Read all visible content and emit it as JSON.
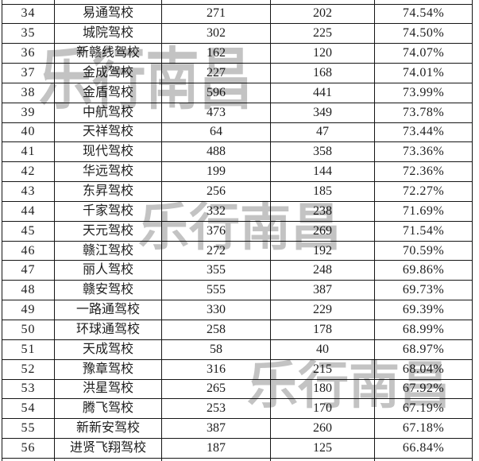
{
  "page": {
    "background": "#ffffff"
  },
  "colors": {
    "border": "#151515",
    "text": "#1d1d1d",
    "watermark": "#c3c3c3"
  },
  "watermark": {
    "text": "乐行南昌",
    "color": "#c3c3c3"
  },
  "table": {
    "rows": [
      [
        "34",
        "易通驾校",
        "271",
        "202",
        "74.54%"
      ],
      [
        "35",
        "城院驾校",
        "302",
        "225",
        "74.50%"
      ],
      [
        "36",
        "新赣线驾校",
        "162",
        "120",
        "74.07%"
      ],
      [
        "37",
        "金成驾校",
        "227",
        "168",
        "74.01%"
      ],
      [
        "38",
        "金盾驾校",
        "596",
        "441",
        "73.99%"
      ],
      [
        "39",
        "中航驾校",
        "473",
        "349",
        "73.78%"
      ],
      [
        "40",
        "天祥驾校",
        "64",
        "47",
        "73.44%"
      ],
      [
        "41",
        "现代驾校",
        "488",
        "358",
        "73.36%"
      ],
      [
        "42",
        "华远驾校",
        "199",
        "144",
        "72.36%"
      ],
      [
        "43",
        "东昇驾校",
        "256",
        "185",
        "72.27%"
      ],
      [
        "44",
        "千家驾校",
        "332",
        "238",
        "71.69%"
      ],
      [
        "45",
        "天元驾校",
        "376",
        "269",
        "71.54%"
      ],
      [
        "46",
        "赣江驾校",
        "272",
        "192",
        "70.59%"
      ],
      [
        "47",
        "丽人驾校",
        "355",
        "248",
        "69.86%"
      ],
      [
        "48",
        "赣安驾校",
        "555",
        "387",
        "69.73%"
      ],
      [
        "49",
        "一路通驾校",
        "330",
        "229",
        "69.39%"
      ],
      [
        "50",
        "环球通驾校",
        "258",
        "178",
        "68.99%"
      ],
      [
        "51",
        "天成驾校",
        "58",
        "40",
        "68.97%"
      ],
      [
        "52",
        "豫章驾校",
        "316",
        "215",
        "68.04%"
      ],
      [
        "53",
        "洪星驾校",
        "265",
        "180",
        "67.92%"
      ],
      [
        "54",
        "腾飞驾校",
        "253",
        "170",
        "67.19%"
      ],
      [
        "55",
        "新新安驾校",
        "387",
        "260",
        "67.18%"
      ],
      [
        "56",
        "进贤飞翔驾校",
        "187",
        "125",
        "66.84%"
      ]
    ]
  }
}
